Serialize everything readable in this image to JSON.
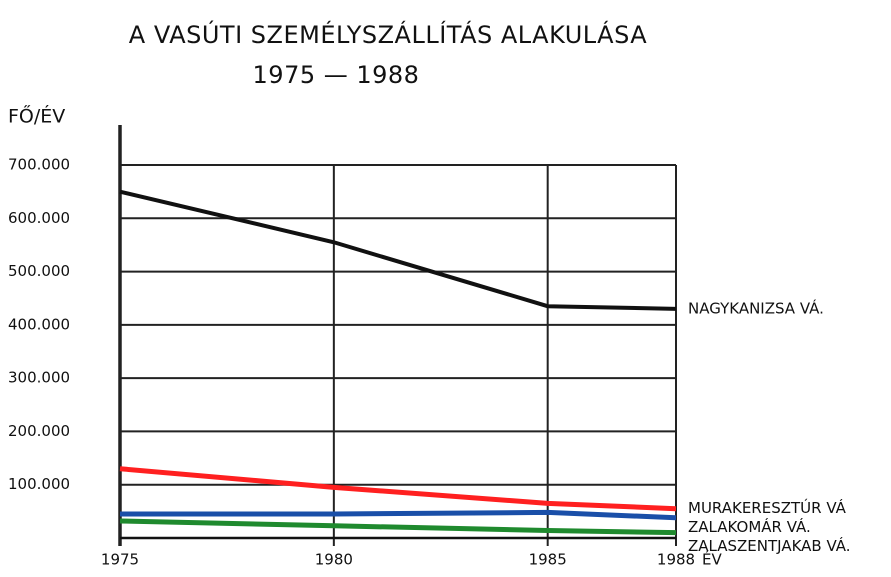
{
  "chart_data": {
    "type": "line",
    "title": "A VASÚTI SZEMÉLYSZÁLLÍTÁS ALAKULÁSA",
    "subtitle": "1975 — 1988",
    "y_label": "FŐ/ÉV",
    "x_label": "ÉV",
    "x": [
      1975,
      1980,
      1985,
      1988
    ],
    "xlim": [
      1975,
      1988
    ],
    "xticks": [
      1975,
      1980,
      1985,
      1988
    ],
    "ylim": [
      0,
      700000
    ],
    "yticks": [
      {
        "value": 100000,
        "label": "100.000"
      },
      {
        "value": 200000,
        "label": "200.000"
      },
      {
        "value": 300000,
        "label": "300.000"
      },
      {
        "value": 400000,
        "label": "400.000"
      },
      {
        "value": 500000,
        "label": "500.000"
      },
      {
        "value": 600000,
        "label": "600.000"
      },
      {
        "value": 700000,
        "label": "700.000"
      }
    ],
    "grid": true,
    "series": [
      {
        "name": "NAGYKANIZSA VÁ.",
        "color": "#111111",
        "values": [
          650000,
          555000,
          435000,
          430000
        ]
      },
      {
        "name": "MURAKERESZTÚR VÁ",
        "color": "#ff2020",
        "values": [
          130000,
          95000,
          65000,
          55000
        ]
      },
      {
        "name": "ZALAKOMÁR VÁ.",
        "color": "#1a4fa8",
        "values": [
          45000,
          45000,
          48000,
          38000
        ]
      },
      {
        "name": "ZALASZENTJAKAB VÁ.",
        "color": "#1f8a2e",
        "values": [
          32000,
          23000,
          14000,
          10000
        ]
      }
    ]
  }
}
